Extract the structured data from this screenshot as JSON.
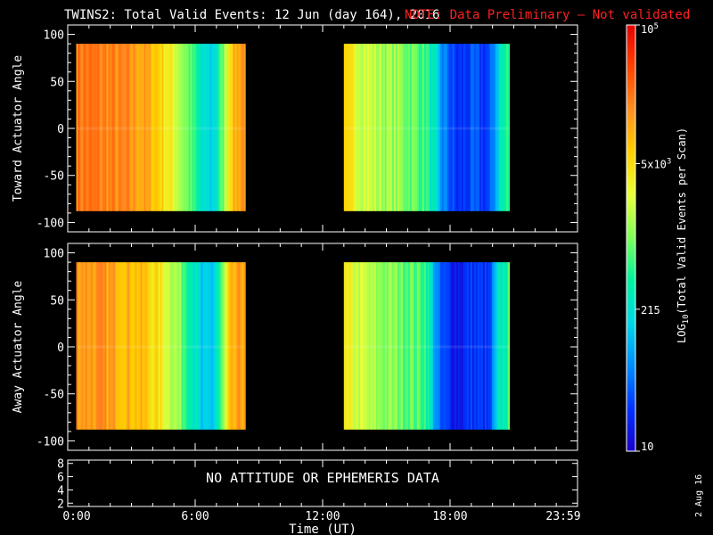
{
  "title": "TWINS2: Total Valid Events: 12 Jun (day 164), 2016",
  "note": "NOTE: Data Preliminary – Not validated",
  "colors": {
    "note": "#ff2020",
    "background": "#000000",
    "foreground": "#ffffff"
  },
  "date_stamp": "2 Aug 16",
  "chart_data": [
    {
      "type": "heatmap",
      "ylabel": "Toward Actuator Angle",
      "ylim": [
        -110,
        110
      ],
      "yticks": [
        100,
        50,
        0,
        -50,
        -100
      ],
      "xlim_hours": [
        0,
        24
      ],
      "angle_range": [
        -88,
        90
      ],
      "data_blocks": [
        {
          "x_start_hours": 0.4,
          "x_end_hours": 8.3,
          "profile": [
            {
              "t": 0.4,
              "v": 0.84
            },
            {
              "t": 2.0,
              "v": 0.81
            },
            {
              "t": 3.5,
              "v": 0.77
            },
            {
              "t": 4.3,
              "v": 0.7
            },
            {
              "t": 5.0,
              "v": 0.6
            },
            {
              "t": 5.8,
              "v": 0.45
            },
            {
              "t": 6.3,
              "v": 0.32
            },
            {
              "t": 6.8,
              "v": 0.3
            },
            {
              "t": 7.2,
              "v": 0.45
            },
            {
              "t": 7.6,
              "v": 0.7
            },
            {
              "t": 8.3,
              "v": 0.82
            }
          ]
        },
        {
          "x_start_hours": 13.0,
          "x_end_hours": 20.8,
          "profile": [
            {
              "t": 13.0,
              "v": 0.65
            },
            {
              "t": 14.5,
              "v": 0.55
            },
            {
              "t": 15.5,
              "v": 0.52
            },
            {
              "t": 16.8,
              "v": 0.45
            },
            {
              "t": 17.5,
              "v": 0.22
            },
            {
              "t": 18.3,
              "v": 0.08
            },
            {
              "t": 19.0,
              "v": 0.12
            },
            {
              "t": 19.8,
              "v": 0.1
            },
            {
              "t": 20.3,
              "v": 0.35
            },
            {
              "t": 20.8,
              "v": 0.45
            }
          ]
        }
      ]
    },
    {
      "type": "heatmap",
      "ylabel": "Away Actuator Angle",
      "ylim": [
        -110,
        110
      ],
      "yticks": [
        100,
        50,
        0,
        -50,
        -100
      ],
      "xlim_hours": [
        0,
        24
      ],
      "angle_range": [
        -88,
        90
      ],
      "data_blocks": [
        {
          "x_start_hours": 0.4,
          "x_end_hours": 8.3,
          "profile": [
            {
              "t": 0.4,
              "v": 0.8
            },
            {
              "t": 2.0,
              "v": 0.77
            },
            {
              "t": 3.5,
              "v": 0.72
            },
            {
              "t": 4.3,
              "v": 0.65
            },
            {
              "t": 5.0,
              "v": 0.55
            },
            {
              "t": 5.8,
              "v": 0.4
            },
            {
              "t": 6.3,
              "v": 0.25
            },
            {
              "t": 6.8,
              "v": 0.28
            },
            {
              "t": 7.2,
              "v": 0.45
            },
            {
              "t": 7.6,
              "v": 0.7
            },
            {
              "t": 8.3,
              "v": 0.8
            }
          ]
        },
        {
          "x_start_hours": 13.0,
          "x_end_hours": 20.8,
          "profile": [
            {
              "t": 13.0,
              "v": 0.62
            },
            {
              "t": 14.5,
              "v": 0.52
            },
            {
              "t": 15.5,
              "v": 0.5
            },
            {
              "t": 16.8,
              "v": 0.45
            },
            {
              "t": 17.5,
              "v": 0.12
            },
            {
              "t": 18.3,
              "v": 0.06
            },
            {
              "t": 19.0,
              "v": 0.1
            },
            {
              "t": 19.8,
              "v": 0.08
            },
            {
              "t": 20.3,
              "v": 0.35
            },
            {
              "t": 20.8,
              "v": 0.45
            }
          ]
        }
      ]
    },
    {
      "type": "line",
      "ylim": [
        1.5,
        8.5
      ],
      "yticks": [
        8,
        6,
        4,
        2
      ],
      "message": "NO ATTITUDE OR EPHEMERIS DATA",
      "xlabel": "Time (UT)",
      "xticks": [
        0,
        6,
        12,
        18,
        23.983
      ],
      "xtick_labels": [
        "0:00",
        "6:00",
        "12:00",
        "18:00",
        "23:59"
      ]
    }
  ],
  "colorbar": {
    "label": "LOG10(Total Valid Events per Scan)",
    "scale": "log",
    "range": [
      10,
      100000
    ],
    "ticks": [
      {
        "value": 10,
        "label": "10"
      },
      {
        "value": 215,
        "label": "215"
      },
      {
        "value": 5000,
        "label": "5x10^3"
      },
      {
        "value": 100000,
        "label": "10^5"
      }
    ],
    "colormap": [
      "#1a00c8",
      "#0033ff",
      "#008cff",
      "#00d8e8",
      "#00f2a0",
      "#7dff5a",
      "#e8ff3a",
      "#ffd000",
      "#ff9020",
      "#ff4400",
      "#e60000"
    ]
  }
}
